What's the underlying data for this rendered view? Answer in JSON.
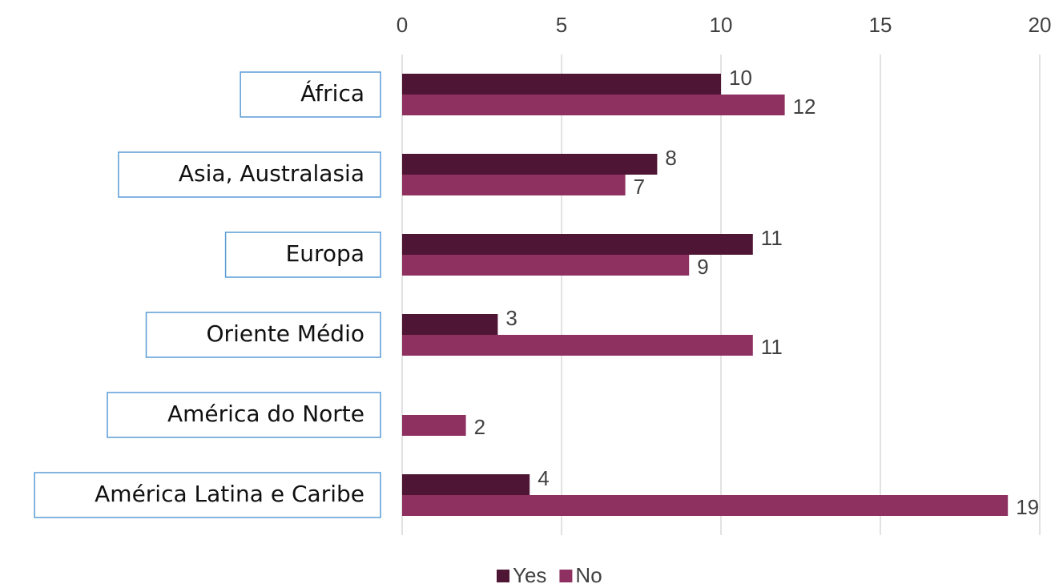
{
  "chart_data": {
    "type": "bar",
    "orientation": "horizontal",
    "categories": [
      "África",
      "Asia, Australasia",
      "Europa",
      "Oriente Médio",
      "América do Norte",
      "América Latina e Caribe"
    ],
    "series": [
      {
        "name": "Yes",
        "color": "#4f1535",
        "values": [
          10,
          8,
          11,
          3,
          null,
          4
        ]
      },
      {
        "name": "No",
        "color": "#8e3160",
        "values": [
          12,
          7,
          9,
          11,
          2,
          19
        ]
      }
    ],
    "xlim": [
      0,
      20
    ],
    "xticks": [
      0,
      5,
      10,
      15,
      20
    ],
    "grid": true,
    "legend": "bottom"
  }
}
